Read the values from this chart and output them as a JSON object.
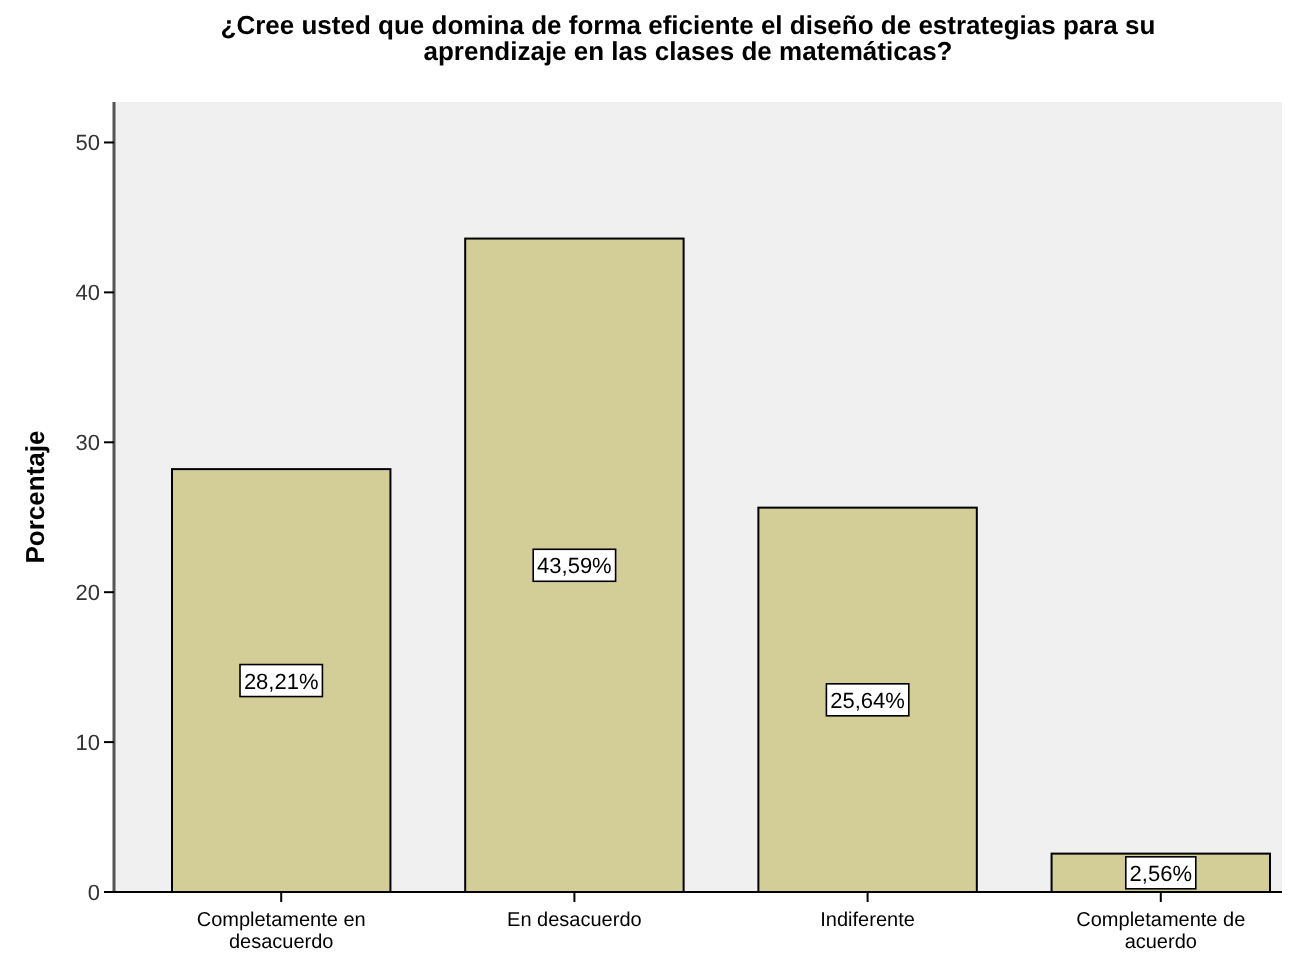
{
  "chart_data": {
    "type": "bar",
    "title": "¿Cree usted que domina de forma eficiente el diseño de estrategias para su\naprendizaje en las clases de matemáticas?",
    "ylabel": "Porcentaje",
    "categories": [
      "Completamente en\ndesacuerdo",
      "En desacuerdo",
      "Indiferente",
      "Completamente de\nacuerdo"
    ],
    "values": [
      28.21,
      43.59,
      25.64,
      2.56
    ],
    "value_labels": [
      "28,21%",
      "43,59%",
      "25,64%",
      "2,56%"
    ],
    "color": "#d3ce97",
    "ylim": [
      0,
      52.7
    ],
    "yticks": [
      0,
      10,
      20,
      30,
      40,
      50
    ],
    "grid": false
  }
}
